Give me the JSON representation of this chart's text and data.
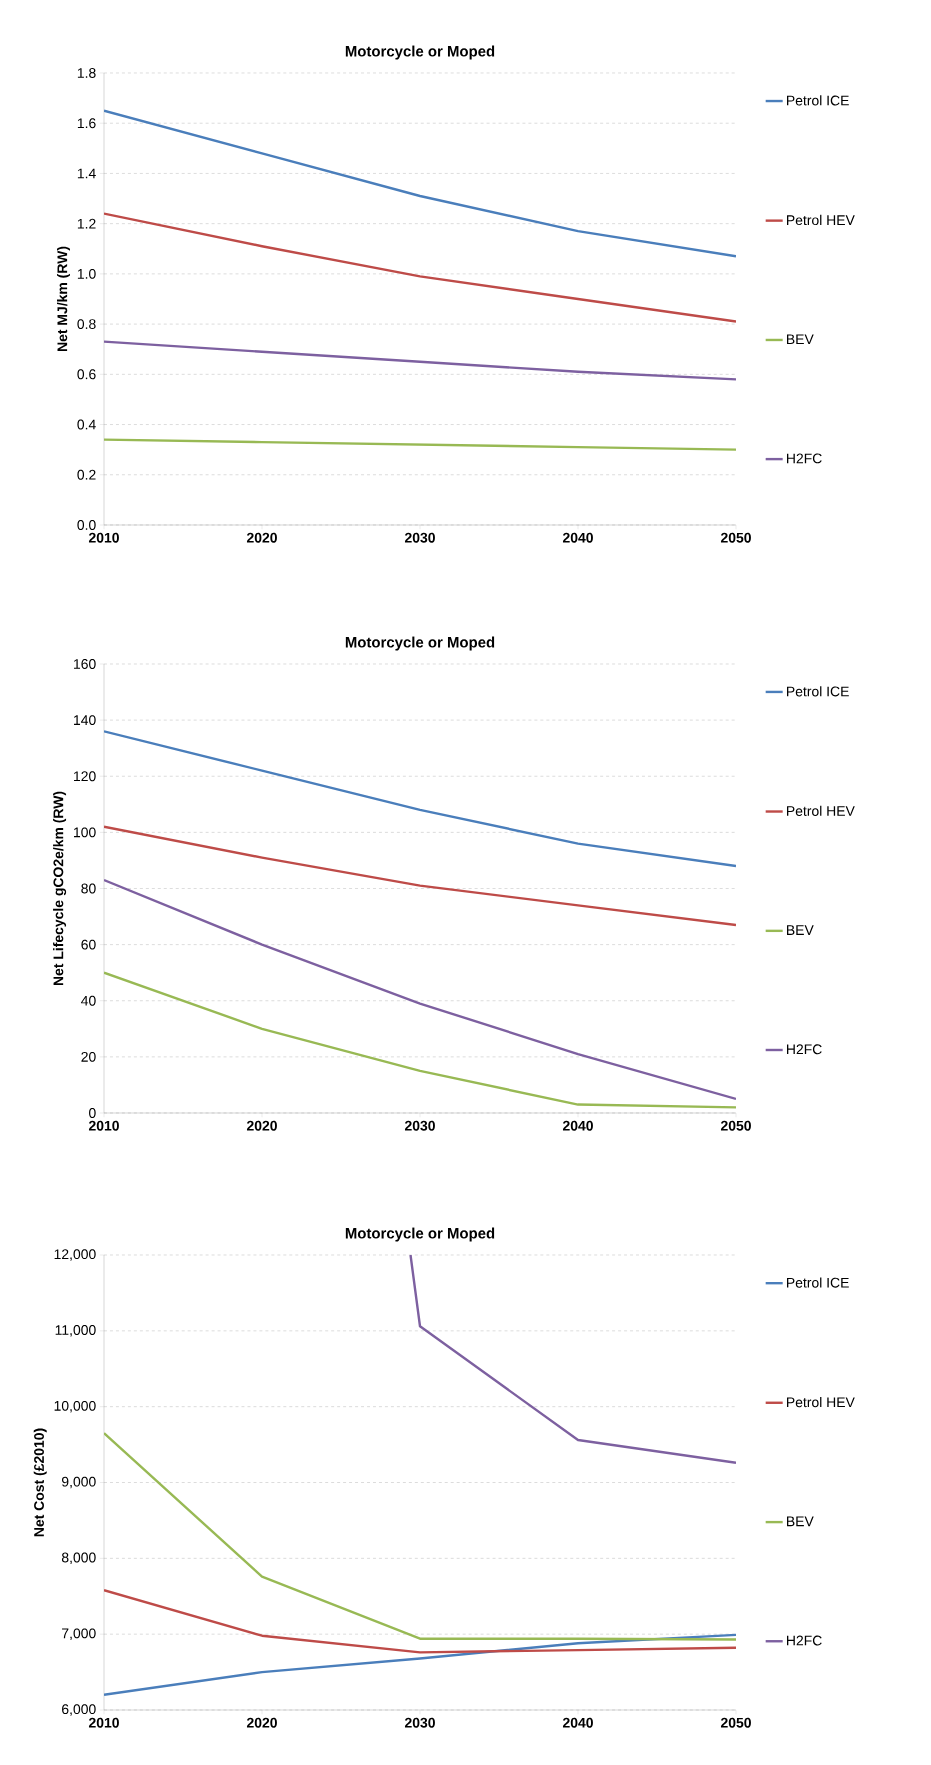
{
  "chart_data": [
    {
      "type": "line",
      "title": "Motorcycle or Moped",
      "ylabel": "Net MJ/km (RW)",
      "x": [
        2010,
        2020,
        2030,
        2040,
        2050
      ],
      "xlim": [
        2010,
        2050
      ],
      "xticks": [
        2010,
        2020,
        2030,
        2040,
        2050
      ],
      "ylim": [
        0,
        1.8
      ],
      "yticks": [
        {
          "value": 0,
          "label": "0.0"
        },
        {
          "value": 0.2,
          "label": "0.2"
        },
        {
          "value": 0.4,
          "label": "0.4"
        },
        {
          "value": 0.6,
          "label": "0.6"
        },
        {
          "value": 0.8,
          "label": "0.8"
        },
        {
          "value": 1.0,
          "label": "1.0"
        },
        {
          "value": 1.2,
          "label": "1.2"
        },
        {
          "value": 1.4,
          "label": "1.4"
        },
        {
          "value": 1.6,
          "label": "1.6"
        },
        {
          "value": 1.8,
          "label": "1.8"
        }
      ],
      "grid": "y",
      "legend": "right",
      "series": [
        {
          "name": "Petrol ICE",
          "color": "#4a7ebb",
          "values": [
            1.65,
            1.48,
            1.31,
            1.17,
            1.07
          ]
        },
        {
          "name": "Petrol HEV",
          "color": "#be4b48",
          "values": [
            1.24,
            1.11,
            0.99,
            0.9,
            0.81
          ]
        },
        {
          "name": "BEV",
          "color": "#98b954",
          "values": [
            0.34,
            0.33,
            0.32,
            0.31,
            0.3
          ]
        },
        {
          "name": "H2FC",
          "color": "#7d60a0",
          "values": [
            0.73,
            0.69,
            0.65,
            0.61,
            0.58
          ]
        }
      ]
    },
    {
      "type": "line",
      "title": "Motorcycle or Moped",
      "ylabel": "Net Lifecycle gCO2e/km (RW)",
      "x": [
        2010,
        2020,
        2030,
        2040,
        2050
      ],
      "xlim": [
        2010,
        2050
      ],
      "xticks": [
        2010,
        2020,
        2030,
        2040,
        2050
      ],
      "ylim": [
        0,
        160
      ],
      "yticks": [
        0,
        20,
        40,
        60,
        80,
        100,
        120,
        140,
        160
      ],
      "grid": "y",
      "legend": "right",
      "series": [
        {
          "name": "Petrol ICE",
          "color": "#4a7ebb",
          "values": [
            136,
            122,
            108,
            96,
            88
          ]
        },
        {
          "name": "Petrol HEV",
          "color": "#be4b48",
          "values": [
            102,
            91,
            81,
            74,
            67
          ]
        },
        {
          "name": "BEV",
          "color": "#98b954",
          "values": [
            50,
            30,
            15,
            3,
            2
          ]
        },
        {
          "name": "H2FC",
          "color": "#7d60a0",
          "values": [
            83,
            60,
            39,
            21,
            5
          ]
        }
      ]
    },
    {
      "type": "line",
      "title": "Motorcycle or Moped",
      "ylabel": "Net Cost (£2010)",
      "x": [
        2010,
        2020,
        2030,
        2040,
        2050
      ],
      "xlim": [
        2010,
        2050
      ],
      "xticks": [
        2010,
        2020,
        2030,
        2040,
        2050
      ],
      "ylim": [
        6000,
        12000
      ],
      "yticks": [
        {
          "value": 6000,
          "label": "6,000"
        },
        {
          "value": 7000,
          "label": "7,000"
        },
        {
          "value": 8000,
          "label": "8,000"
        },
        {
          "value": 9000,
          "label": "9,000"
        },
        {
          "value": 10000,
          "label": "10,000"
        },
        {
          "value": 11000,
          "label": "11,000"
        },
        {
          "value": 12000,
          "label": "12,000"
        }
      ],
      "grid": "y",
      "legend": "right",
      "series": [
        {
          "name": "Petrol ICE",
          "color": "#4a7ebb",
          "values": [
            6200,
            6500,
            6680,
            6880,
            6990
          ]
        },
        {
          "name": "Petrol HEV",
          "color": "#be4b48",
          "values": [
            7580,
            6980,
            6760,
            6790,
            6820
          ]
        },
        {
          "name": "BEV",
          "color": "#98b954",
          "values": [
            9650,
            7760,
            6940,
            6940,
            6930
          ]
        },
        {
          "name": "H2FC",
          "color": "#7d60a0",
          "x": [
            2029.4,
            2030,
            2040,
            2050
          ],
          "values": [
            12000,
            11060,
            9560,
            9260
          ]
        }
      ]
    }
  ]
}
